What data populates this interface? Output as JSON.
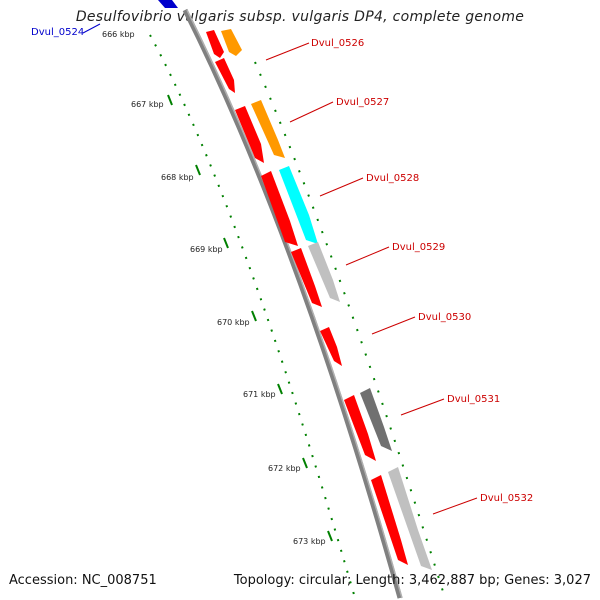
{
  "title": "Desulfovibrio vulgaris subsp. vulgaris DP4, complete genome",
  "footer": {
    "accession": "Accession: NC_008751",
    "summary": "Topology: circular; Length: 3,462,887 bp; Genes: 3,027"
  },
  "ticks": [
    "666 kbp",
    "667 kbp",
    "668 kbp",
    "669 kbp",
    "670 kbp",
    "671 kbp",
    "672 kbp",
    "673 kbp"
  ],
  "gene_labels": [
    {
      "text": "Dvul_0524",
      "color": "#0000cc"
    },
    {
      "text": "Dvul_0526",
      "color": "#cc0000"
    },
    {
      "text": "Dvul_0527",
      "color": "#cc0000"
    },
    {
      "text": "Dvul_0528",
      "color": "#cc0000"
    },
    {
      "text": "Dvul_0529",
      "color": "#cc0000"
    },
    {
      "text": "Dvul_0530",
      "color": "#cc0000"
    },
    {
      "text": "Dvul_0531",
      "color": "#cc0000"
    },
    {
      "text": "Dvul_0532",
      "color": "#cc0000"
    }
  ],
  "colors": {
    "gene_red": "#ff0000",
    "orange": "#ff9900",
    "cyan": "#00ffff",
    "light_gray": "#c0c0c0",
    "dark_gray": "#707070",
    "blue": "#0000cc",
    "backbone": "#808080",
    "dotted_ring": "#008000"
  }
}
